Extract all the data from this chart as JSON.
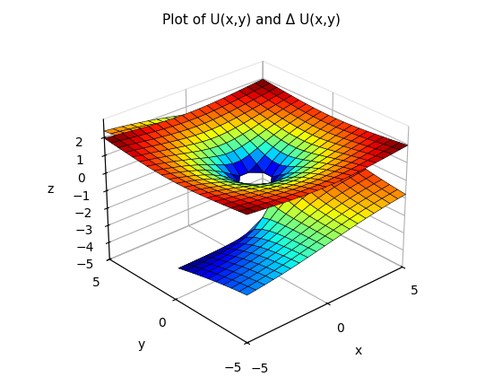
{
  "title": "Plot of U(x,y) and Δ U(x,y)",
  "xlabel": "x",
  "ylabel": "y",
  "zlabel": "z",
  "x_range": [
    -5,
    5
  ],
  "y_range": [
    -5,
    5
  ],
  "n_points": 20,
  "elev": 28,
  "azim": -132,
  "colormap": "jet",
  "z_tick_vals": [
    -5,
    -4,
    -3,
    -2,
    -1,
    0,
    1,
    2
  ],
  "x_tick_vals": [
    -5,
    0,
    5
  ],
  "y_tick_vals": [
    -5,
    0,
    5
  ]
}
